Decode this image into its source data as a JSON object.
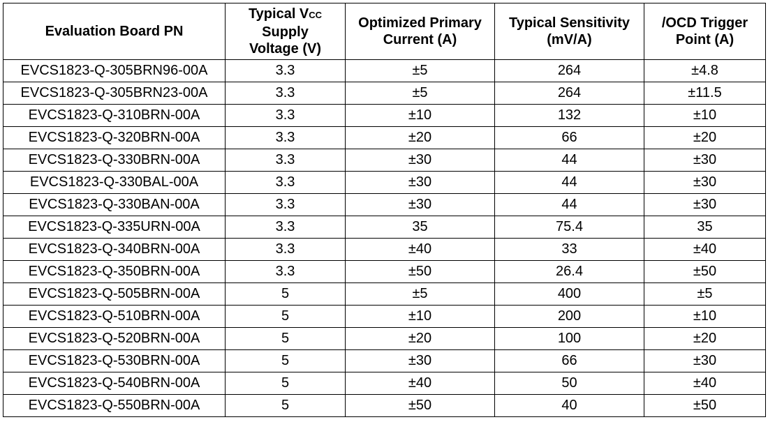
{
  "table": {
    "headers": [
      {
        "lines": [
          "Evaluation Board PN"
        ]
      },
      {
        "line1_main": "Typical V",
        "line1_sub": "CC",
        "line2": "Supply",
        "line3": "Voltage (V)"
      },
      {
        "lines": [
          "Optimized Primary",
          "Current (A)"
        ]
      },
      {
        "lines": [
          "Typical Sensitivity",
          "(mV/A)"
        ]
      },
      {
        "lines": [
          "/OCD Trigger",
          "Point (A)"
        ]
      }
    ],
    "rows": [
      [
        "EVCS1823-Q-305BRN96-00A",
        "3.3",
        "±5",
        "264",
        "±4.8"
      ],
      [
        "EVCS1823-Q-305BRN23-00A",
        "3.3",
        "±5",
        "264",
        "±11.5"
      ],
      [
        "EVCS1823-Q-310BRN-00A",
        "3.3",
        "±10",
        "132",
        "±10"
      ],
      [
        "EVCS1823-Q-320BRN-00A",
        "3.3",
        "±20",
        "66",
        "±20"
      ],
      [
        "EVCS1823-Q-330BRN-00A",
        "3.3",
        "±30",
        "44",
        "±30"
      ],
      [
        "EVCS1823-Q-330BAL-00A",
        "3.3",
        "±30",
        "44",
        "±30"
      ],
      [
        "EVCS1823-Q-330BAN-00A",
        "3.3",
        "±30",
        "44",
        "±30"
      ],
      [
        "EVCS1823-Q-335URN-00A",
        "3.3",
        "35",
        "75.4",
        "35"
      ],
      [
        "EVCS1823-Q-340BRN-00A",
        "3.3",
        "±40",
        "33",
        "±40"
      ],
      [
        "EVCS1823-Q-350BRN-00A",
        "3.3",
        "±50",
        "26.4",
        "±50"
      ],
      [
        "EVCS1823-Q-505BRN-00A",
        "5",
        "±5",
        "400",
        "±5"
      ],
      [
        "EVCS1823-Q-510BRN-00A",
        "5",
        "±10",
        "200",
        "±10"
      ],
      [
        "EVCS1823-Q-520BRN-00A",
        "5",
        "±20",
        "100",
        "±20"
      ],
      [
        "EVCS1823-Q-530BRN-00A",
        "5",
        "±30",
        "66",
        "±30"
      ],
      [
        "EVCS1823-Q-540BRN-00A",
        "5",
        "±40",
        "50",
        "±40"
      ],
      [
        "EVCS1823-Q-550BRN-00A",
        "5",
        "±50",
        "40",
        "±50"
      ]
    ]
  }
}
